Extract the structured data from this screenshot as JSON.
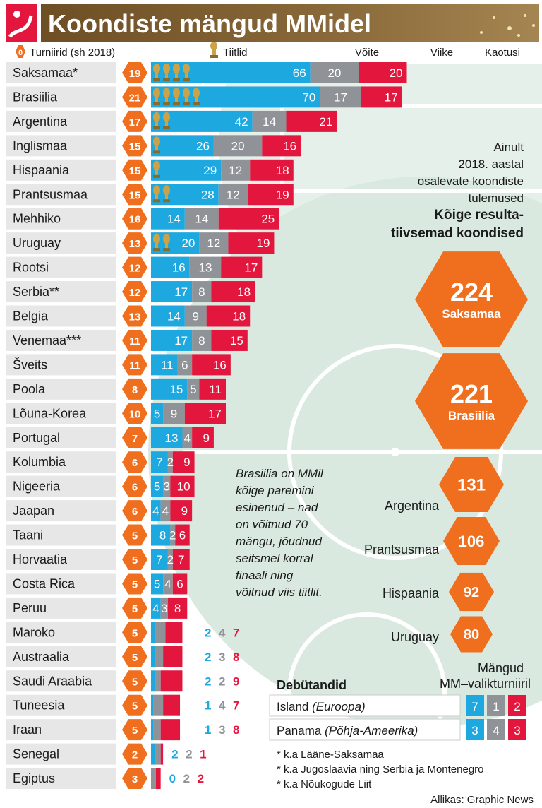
{
  "title": "Koondiste mängud MMidel",
  "source": "Allikas: Graphic News",
  "colors": {
    "title_bg": "#7a5a2e",
    "wins": "#1ea8e0",
    "draws": "#8f9296",
    "losses": "#e3173e",
    "hex": "#ef6f1f",
    "gold": "#c9a24a",
    "field": "#d4e6dc",
    "name_bg": "#e7e7e7",
    "text": "#1a1a1a"
  },
  "legend": {
    "zero_badge": "0",
    "tournaments": "Turniirid (sh 2018)",
    "titles": "Tiitlid",
    "wins": "Võite",
    "draws": "Viike",
    "losses": "Kaotusi"
  },
  "chart_data": {
    "type": "bar",
    "title": "Koondiste mängud MMidel",
    "stacked": true,
    "series_names": [
      "Võite",
      "Viike",
      "Kaotusi"
    ],
    "categories": [
      "Saksamaa*",
      "Brasiilia",
      "Argentina",
      "Inglismaa",
      "Hispaania",
      "Prantsusmaa",
      "Mehhiko",
      "Uruguay",
      "Rootsi",
      "Serbia**",
      "Belgia",
      "Venemaa***",
      "Šveits",
      "Poola",
      "Lõuna-Korea",
      "Portugal",
      "Kolumbia",
      "Nigeeria",
      "Jaapan",
      "Taani",
      "Horvaatia",
      "Costa Rica",
      "Peruu",
      "Maroko",
      "Austraalia",
      "Saudi Araabia",
      "Tuneesia",
      "Iraan",
      "Senegal",
      "Egiptus"
    ],
    "tournaments": [
      19,
      21,
      17,
      15,
      15,
      15,
      16,
      13,
      12,
      12,
      13,
      11,
      11,
      8,
      10,
      7,
      6,
      6,
      6,
      5,
      5,
      5,
      5,
      5,
      5,
      5,
      5,
      5,
      2,
      3
    ],
    "titles": [
      4,
      5,
      2,
      1,
      1,
      2,
      0,
      2,
      0,
      0,
      0,
      0,
      0,
      0,
      0,
      0,
      0,
      0,
      0,
      0,
      0,
      0,
      0,
      0,
      0,
      0,
      0,
      0,
      0,
      0
    ],
    "wins": [
      66,
      70,
      42,
      26,
      29,
      28,
      14,
      20,
      16,
      17,
      14,
      17,
      11,
      15,
      5,
      13,
      7,
      5,
      4,
      8,
      7,
      5,
      4,
      2,
      2,
      2,
      1,
      1,
      2,
      0
    ],
    "draws": [
      20,
      17,
      14,
      20,
      12,
      12,
      14,
      12,
      13,
      8,
      9,
      8,
      6,
      5,
      9,
      4,
      2,
      3,
      4,
      2,
      2,
      4,
      3,
      4,
      3,
      2,
      4,
      3,
      2,
      2
    ],
    "losses": [
      20,
      17,
      21,
      16,
      18,
      19,
      25,
      19,
      17,
      18,
      18,
      15,
      16,
      11,
      17,
      9,
      9,
      10,
      9,
      6,
      7,
      6,
      8,
      7,
      8,
      9,
      7,
      8,
      1,
      2
    ]
  },
  "side_note": {
    "line1": "Ainult",
    "line2": "2018. aastal",
    "line3": "osalevate koondiste",
    "line4": "tulemused"
  },
  "top_heading": {
    "line1": "Kõige resulta-",
    "line2": "tiivsemad koondised"
  },
  "top_teams": [
    {
      "value": "224",
      "name": "Saksamaa"
    },
    {
      "value": "221",
      "name": "Brasiilia"
    },
    {
      "value": "131",
      "name": "Argentina"
    },
    {
      "value": "106",
      "name": "Prantsusmaa"
    },
    {
      "value": "92",
      "name": "Hispaania"
    },
    {
      "value": "80",
      "name": "Uruguay"
    }
  ],
  "annotation": {
    "line1": "Brasiilia on MMil",
    "line2": "kõige paremini",
    "line3": "esinenud – nad",
    "line4": "on võitnud 70",
    "line5": "mängu, jõudnud",
    "line6": "seitsmel korral",
    "line7": "finaali ning",
    "line8": "võitnud viis tiitlit."
  },
  "debut": {
    "heading": "Debütandid",
    "qual_heading_1": "Mängud",
    "qual_heading_2": "MM–valikturniiril",
    "rows": [
      {
        "name": "Island",
        "region": "(Euroopa)",
        "wins": "7",
        "draws": "1",
        "losses": "2"
      },
      {
        "name": "Panama",
        "region": "(Põhja-Ameerika)",
        "wins": "3",
        "draws": "4",
        "losses": "3"
      }
    ]
  },
  "footnotes": [
    "* k.a Lääne-Saksamaa",
    "* k.a Jugoslaavia ning Serbia ja Montenegro",
    "* k.a Nõukogude Liit"
  ]
}
